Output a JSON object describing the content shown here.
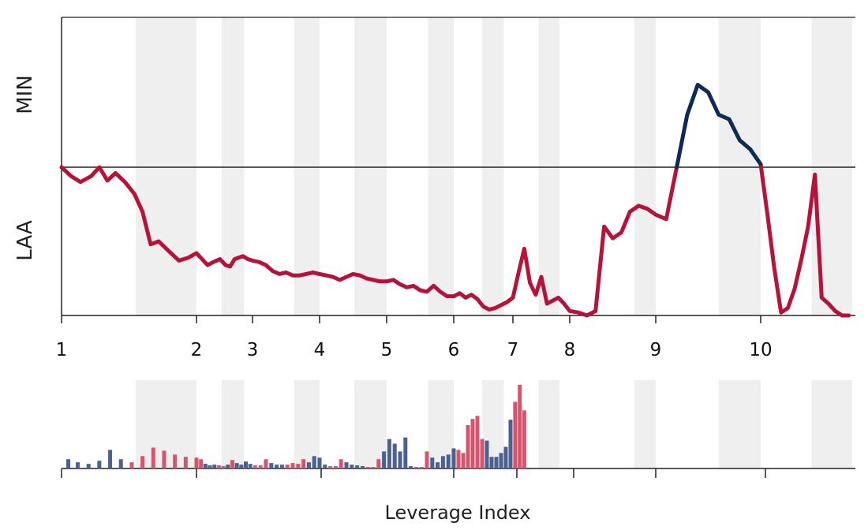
{
  "chart_data": [
    {
      "type": "line",
      "title": "",
      "ylabel_top": "MIN",
      "ylabel_bottom": "LAA",
      "baseline": 0,
      "ylim": [
        -1,
        1
      ],
      "xlim": [
        1,
        11.35
      ],
      "x_ticks": [
        1,
        2,
        3,
        4,
        5,
        6,
        7,
        8,
        9,
        10
      ],
      "x_tick_labels": [
        "1",
        "2",
        "3",
        "4",
        "5",
        "6",
        "7",
        "8",
        "9",
        "10"
      ],
      "colors": {
        "above": "#0d2b55",
        "below": "#b5133a",
        "shade": "#efefef",
        "axis": "#222222"
      },
      "shaded_bands": [
        [
          1.55,
          2.0
        ],
        [
          2.45,
          2.85
        ],
        [
          3.62,
          4.0
        ],
        [
          4.52,
          5.0
        ],
        [
          5.62,
          6.0
        ],
        [
          6.48,
          6.85
        ],
        [
          7.45,
          7.82
        ],
        [
          8.75,
          9.0
        ],
        [
          9.6,
          10.0
        ],
        [
          10.75,
          11.35
        ]
      ],
      "x": [
        1.0,
        1.07,
        1.14,
        1.22,
        1.28,
        1.34,
        1.4,
        1.47,
        1.54,
        1.6,
        1.66,
        1.72,
        1.8,
        1.87,
        1.94,
        2.0,
        2.1,
        2.2,
        2.3,
        2.42,
        2.52,
        2.6,
        2.68,
        2.75,
        2.83,
        2.92,
        3.0,
        3.1,
        3.2,
        3.3,
        3.4,
        3.5,
        3.6,
        3.7,
        3.8,
        3.9,
        4.0,
        4.1,
        4.2,
        4.3,
        4.4,
        4.5,
        4.6,
        4.7,
        4.8,
        4.9,
        5.0,
        5.1,
        5.2,
        5.3,
        5.4,
        5.5,
        5.6,
        5.7,
        5.8,
        5.9,
        6.0,
        6.1,
        6.2,
        6.3,
        6.4,
        6.5,
        6.6,
        6.7,
        6.8,
        6.9,
        7.0,
        7.1,
        7.2,
        7.3,
        7.4,
        7.5,
        7.6,
        7.7,
        7.8,
        7.9,
        8.0,
        8.1,
        8.2,
        8.3,
        8.4,
        8.5,
        8.6,
        8.7,
        8.8,
        8.9,
        9.0,
        9.1,
        9.2,
        9.3,
        9.4,
        9.5,
        9.6,
        9.7,
        9.8,
        9.9,
        10.0,
        10.1,
        10.2,
        10.3,
        10.4,
        10.5,
        10.6,
        10.7,
        10.8,
        10.9,
        11.0,
        11.1,
        11.2,
        11.3
      ],
      "y": [
        0.0,
        -0.06,
        -0.1,
        -0.06,
        0.0,
        -0.09,
        -0.04,
        -0.1,
        -0.18,
        -0.3,
        -0.52,
        -0.5,
        -0.57,
        -0.63,
        -0.61,
        -0.58,
        -0.62,
        -0.66,
        -0.64,
        -0.62,
        -0.66,
        -0.67,
        -0.62,
        -0.61,
        -0.6,
        -0.62,
        -0.63,
        -0.64,
        -0.66,
        -0.7,
        -0.72,
        -0.71,
        -0.73,
        -0.73,
        -0.72,
        -0.71,
        -0.72,
        -0.73,
        -0.74,
        -0.76,
        -0.74,
        -0.72,
        -0.73,
        -0.75,
        -0.76,
        -0.77,
        -0.77,
        -0.76,
        -0.79,
        -0.81,
        -0.8,
        -0.83,
        -0.84,
        -0.8,
        -0.84,
        -0.87,
        -0.87,
        -0.85,
        -0.88,
        -0.86,
        -0.89,
        -0.94,
        -0.96,
        -0.95,
        -0.93,
        -0.91,
        -0.88,
        -0.71,
        -0.55,
        -0.78,
        -0.86,
        -0.74,
        -0.92,
        -0.9,
        -0.88,
        -0.92,
        -0.97,
        -0.98,
        -1.0,
        -0.97,
        -0.4,
        -0.48,
        -0.44,
        -0.3,
        -0.26,
        -0.28,
        -0.32,
        -0.35,
        0.0,
        0.35,
        0.55,
        0.5,
        0.35,
        0.32,
        0.18,
        0.12,
        0.02,
        -0.32,
        -0.68,
        -0.98,
        -0.95,
        -0.82,
        -0.62,
        -0.4,
        -0.05,
        -0.88,
        -0.92,
        -0.97,
        -1.0,
        -1.0
      ]
    },
    {
      "type": "bar",
      "xlabel": "Leverage Index",
      "x_ticks": [
        1,
        3,
        5,
        6,
        7,
        8,
        9,
        10,
        10.1
      ],
      "colors": {
        "positive": "#4a6191",
        "negative": "#d4566e"
      },
      "shaded_bands": [
        [
          1.55,
          2.0
        ],
        [
          2.45,
          2.85
        ],
        [
          3.62,
          4.0
        ],
        [
          4.52,
          5.0
        ],
        [
          5.62,
          6.0
        ],
        [
          6.48,
          6.85
        ],
        [
          7.45,
          7.82
        ],
        [
          8.75,
          9.0
        ],
        [
          9.6,
          10.0
        ],
        [
          10.75,
          11.35
        ]
      ],
      "bars": [
        {
          "x": 1.05,
          "value": 12,
          "sign": "pos"
        },
        {
          "x": 1.12,
          "value": 8,
          "sign": "pos"
        },
        {
          "x": 1.2,
          "value": 6,
          "sign": "pos"
        },
        {
          "x": 1.28,
          "value": 10,
          "sign": "pos"
        },
        {
          "x": 1.36,
          "value": 24,
          "sign": "pos"
        },
        {
          "x": 1.44,
          "value": 12,
          "sign": "pos"
        },
        {
          "x": 1.52,
          "value": 8,
          "sign": "neg"
        },
        {
          "x": 1.6,
          "value": 16,
          "sign": "neg"
        },
        {
          "x": 1.68,
          "value": 27,
          "sign": "neg"
        },
        {
          "x": 1.76,
          "value": 23,
          "sign": "neg"
        },
        {
          "x": 1.84,
          "value": 18,
          "sign": "neg"
        },
        {
          "x": 1.92,
          "value": 15,
          "sign": "neg"
        },
        {
          "x": 2.0,
          "value": 14,
          "sign": "neg"
        },
        {
          "x": 2.08,
          "value": 12,
          "sign": "neg"
        },
        {
          "x": 2.16,
          "value": 6,
          "sign": "pos"
        },
        {
          "x": 2.24,
          "value": 4,
          "sign": "pos"
        },
        {
          "x": 2.32,
          "value": 5,
          "sign": "pos"
        },
        {
          "x": 2.4,
          "value": 4,
          "sign": "neg"
        },
        {
          "x": 2.48,
          "value": 3,
          "sign": "neg"
        },
        {
          "x": 2.56,
          "value": 5,
          "sign": "pos"
        },
        {
          "x": 2.64,
          "value": 11,
          "sign": "neg"
        },
        {
          "x": 2.72,
          "value": 7,
          "sign": "pos"
        },
        {
          "x": 2.8,
          "value": 5,
          "sign": "pos"
        },
        {
          "x": 2.88,
          "value": 9,
          "sign": "pos"
        },
        {
          "x": 2.96,
          "value": 6,
          "sign": "pos"
        },
        {
          "x": 3.04,
          "value": 4,
          "sign": "neg"
        },
        {
          "x": 3.12,
          "value": 4,
          "sign": "neg"
        },
        {
          "x": 3.2,
          "value": 12,
          "sign": "neg"
        },
        {
          "x": 3.28,
          "value": 7,
          "sign": "pos"
        },
        {
          "x": 3.36,
          "value": 5,
          "sign": "pos"
        },
        {
          "x": 3.44,
          "value": 5,
          "sign": "pos"
        },
        {
          "x": 3.52,
          "value": 5,
          "sign": "neg"
        },
        {
          "x": 3.6,
          "value": 7,
          "sign": "neg"
        },
        {
          "x": 3.68,
          "value": 6,
          "sign": "neg"
        },
        {
          "x": 3.76,
          "value": 12,
          "sign": "neg"
        },
        {
          "x": 3.84,
          "value": 8,
          "sign": "pos"
        },
        {
          "x": 3.92,
          "value": 16,
          "sign": "pos"
        },
        {
          "x": 4.0,
          "value": 14,
          "sign": "pos"
        },
        {
          "x": 4.08,
          "value": 5,
          "sign": "pos"
        },
        {
          "x": 4.16,
          "value": 3,
          "sign": "neg"
        },
        {
          "x": 4.24,
          "value": 3,
          "sign": "neg"
        },
        {
          "x": 4.32,
          "value": 12,
          "sign": "neg"
        },
        {
          "x": 4.4,
          "value": 8,
          "sign": "pos"
        },
        {
          "x": 4.48,
          "value": 5,
          "sign": "pos"
        },
        {
          "x": 4.56,
          "value": 4,
          "sign": "pos"
        },
        {
          "x": 4.64,
          "value": 3,
          "sign": "pos"
        },
        {
          "x": 4.72,
          "value": 2,
          "sign": "neg"
        },
        {
          "x": 4.8,
          "value": 2,
          "sign": "neg"
        },
        {
          "x": 4.88,
          "value": 12,
          "sign": "neg"
        },
        {
          "x": 4.96,
          "value": 22,
          "sign": "pos"
        },
        {
          "x": 5.04,
          "value": 38,
          "sign": "pos"
        },
        {
          "x": 5.12,
          "value": 32,
          "sign": "pos"
        },
        {
          "x": 5.2,
          "value": 22,
          "sign": "pos"
        },
        {
          "x": 5.28,
          "value": 40,
          "sign": "pos"
        },
        {
          "x": 5.36,
          "value": 3,
          "sign": "pos"
        },
        {
          "x": 5.44,
          "value": 2,
          "sign": "neg"
        },
        {
          "x": 5.52,
          "value": 2,
          "sign": "neg"
        },
        {
          "x": 5.6,
          "value": 22,
          "sign": "neg"
        },
        {
          "x": 5.68,
          "value": 14,
          "sign": "pos"
        },
        {
          "x": 5.76,
          "value": 8,
          "sign": "pos"
        },
        {
          "x": 5.84,
          "value": 16,
          "sign": "pos"
        },
        {
          "x": 5.92,
          "value": 18,
          "sign": "pos"
        },
        {
          "x": 6.0,
          "value": 26,
          "sign": "pos"
        },
        {
          "x": 6.08,
          "value": 24,
          "sign": "neg"
        },
        {
          "x": 6.16,
          "value": 20,
          "sign": "neg"
        },
        {
          "x": 6.24,
          "value": 56,
          "sign": "neg"
        },
        {
          "x": 6.32,
          "value": 64,
          "sign": "neg"
        },
        {
          "x": 6.4,
          "value": 68,
          "sign": "neg"
        },
        {
          "x": 6.48,
          "value": 38,
          "sign": "neg"
        },
        {
          "x": 6.56,
          "value": 36,
          "sign": "pos"
        },
        {
          "x": 6.64,
          "value": 15,
          "sign": "pos"
        },
        {
          "x": 6.72,
          "value": 15,
          "sign": "pos"
        },
        {
          "x": 6.8,
          "value": 20,
          "sign": "pos"
        },
        {
          "x": 6.88,
          "value": 28,
          "sign": "pos"
        },
        {
          "x": 6.96,
          "value": 63,
          "sign": "pos"
        },
        {
          "x": 7.04,
          "value": 86,
          "sign": "neg"
        },
        {
          "x": 7.12,
          "value": 108,
          "sign": "neg"
        },
        {
          "x": 7.2,
          "value": 75,
          "sign": "neg"
        }
      ]
    }
  ]
}
